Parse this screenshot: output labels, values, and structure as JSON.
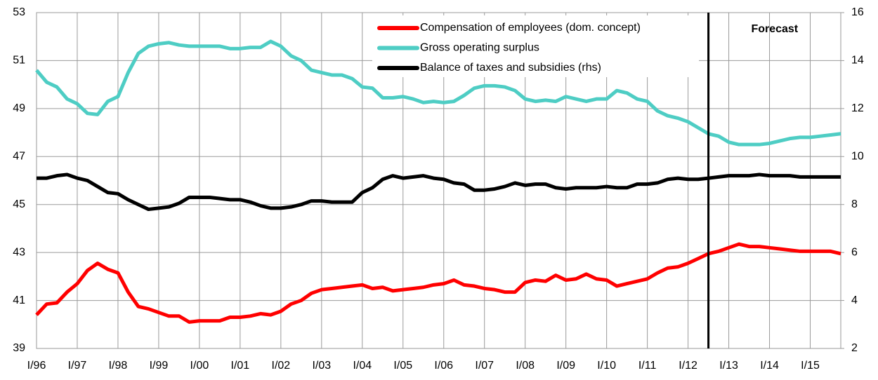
{
  "chart_data": {
    "type": "line",
    "categories": [
      "I/96",
      null,
      null,
      null,
      "I/97",
      null,
      null,
      null,
      "I/98",
      null,
      null,
      null,
      "I/99",
      null,
      null,
      null,
      "I/00",
      null,
      null,
      null,
      "I/01",
      null,
      null,
      null,
      "I/02",
      null,
      null,
      null,
      "I/03",
      null,
      null,
      null,
      "I/04",
      null,
      null,
      null,
      "I/05",
      null,
      null,
      null,
      "I/06",
      null,
      null,
      null,
      "I/07",
      null,
      null,
      null,
      "I/08",
      null,
      null,
      null,
      "I/09",
      null,
      null,
      null,
      "I/10",
      null,
      null,
      null,
      "I/11",
      null,
      null,
      null,
      "I/12",
      null,
      null,
      null,
      "I/13",
      null,
      null,
      null,
      "I/14",
      null,
      null,
      null,
      "I/15",
      null,
      null,
      null
    ],
    "series": [
      {
        "name": "Compensation of employees (dom. concept)",
        "color": "#ff0000",
        "axis": "y",
        "values": [
          40.4,
          40.85,
          40.9,
          41.35,
          41.7,
          42.25,
          42.55,
          42.3,
          42.15,
          41.35,
          40.75,
          40.65,
          40.5,
          40.35,
          40.35,
          40.1,
          40.15,
          40.15,
          40.15,
          40.3,
          40.3,
          40.35,
          40.45,
          40.4,
          40.55,
          40.85,
          41.0,
          41.3,
          41.45,
          41.5,
          41.55,
          41.6,
          41.65,
          41.5,
          41.55,
          41.4,
          41.45,
          41.5,
          41.55,
          41.65,
          41.7,
          41.85,
          41.65,
          41.6,
          41.5,
          41.45,
          41.35,
          41.35,
          41.75,
          41.85,
          41.8,
          42.05,
          41.85,
          41.9,
          42.1,
          41.9,
          41.85,
          41.6,
          41.7,
          41.8,
          41.9,
          42.15,
          42.35,
          42.4,
          42.55,
          42.75,
          42.95,
          43.05,
          43.2,
          43.35,
          43.25,
          43.25,
          43.2,
          43.15,
          43.1,
          43.05,
          43.05,
          43.05,
          43.05,
          42.95
        ]
      },
      {
        "name": "Gross operating surplus",
        "color": "#4ecdc4",
        "axis": "y",
        "values": [
          50.6,
          50.1,
          49.9,
          49.4,
          49.2,
          48.8,
          48.75,
          49.3,
          49.5,
          50.5,
          51.3,
          51.6,
          51.7,
          51.75,
          51.65,
          51.6,
          51.6,
          51.6,
          51.6,
          51.5,
          51.5,
          51.55,
          51.55,
          51.8,
          51.6,
          51.2,
          51.0,
          50.6,
          50.5,
          50.4,
          50.4,
          50.25,
          49.9,
          49.85,
          49.45,
          49.45,
          49.5,
          49.4,
          49.25,
          49.3,
          49.25,
          49.3,
          49.55,
          49.85,
          49.95,
          49.95,
          49.9,
          49.75,
          49.4,
          49.3,
          49.35,
          49.3,
          49.5,
          49.4,
          49.3,
          49.4,
          49.4,
          49.75,
          49.65,
          49.4,
          49.3,
          48.9,
          48.7,
          48.6,
          48.45,
          48.2,
          47.95,
          47.85,
          47.6,
          47.5,
          47.5,
          47.5,
          47.55,
          47.65,
          47.75,
          47.8,
          47.8,
          47.85,
          47.9,
          47.95
        ]
      },
      {
        "name": "Balance of taxes and subsidies (rhs)",
        "color": "#000000",
        "axis": "y2",
        "values": [
          9.1,
          9.1,
          9.2,
          9.25,
          9.1,
          9.0,
          8.75,
          8.5,
          8.45,
          8.2,
          8.0,
          7.8,
          7.85,
          7.9,
          8.05,
          8.3,
          8.3,
          8.3,
          8.25,
          8.2,
          8.2,
          8.1,
          7.95,
          7.85,
          7.85,
          7.9,
          8.0,
          8.15,
          8.15,
          8.1,
          8.1,
          8.1,
          8.5,
          8.7,
          9.05,
          9.2,
          9.1,
          9.15,
          9.2,
          9.1,
          9.05,
          8.9,
          8.85,
          8.6,
          8.6,
          8.65,
          8.75,
          8.9,
          8.8,
          8.85,
          8.85,
          8.7,
          8.65,
          8.7,
          8.7,
          8.7,
          8.75,
          8.7,
          8.7,
          8.85,
          8.85,
          8.9,
          9.05,
          9.1,
          9.05,
          9.05,
          9.1,
          9.15,
          9.2,
          9.2,
          9.2,
          9.25,
          9.2,
          9.2,
          9.2,
          9.15,
          9.15,
          9.15,
          9.15,
          9.15
        ]
      }
    ],
    "ylim": [
      39,
      53
    ],
    "yticks": [
      39,
      41,
      43,
      45,
      47,
      49,
      51,
      53
    ],
    "y2lim": [
      2,
      16
    ],
    "y2ticks": [
      2,
      4,
      6,
      8,
      10,
      12,
      14,
      16
    ],
    "grid": true,
    "annotations": [
      {
        "text": "Forecast",
        "x": 66
      }
    ]
  }
}
